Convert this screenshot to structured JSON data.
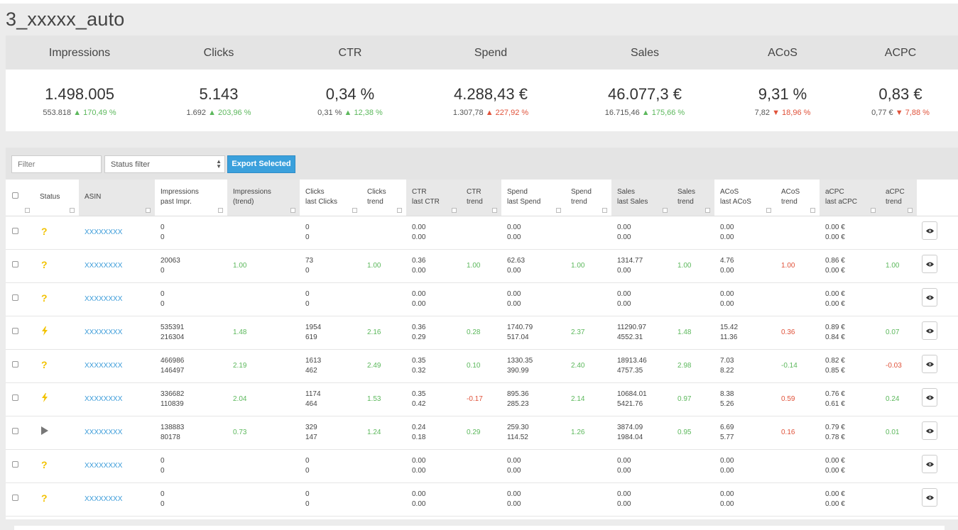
{
  "page": {
    "title": "3_xxxxx_auto"
  },
  "stats": [
    {
      "label": "Impressions",
      "value": "1.498.005",
      "prev": "553.818",
      "arrow": "▲",
      "change": "170,49 %",
      "tone": "up-good"
    },
    {
      "label": "Clicks",
      "value": "5.143",
      "prev": "1.692",
      "arrow": "▲",
      "change": "203,96 %",
      "tone": "up-good"
    },
    {
      "label": "CTR",
      "value": "0,34 %",
      "prev": "0,31 %",
      "arrow": "▲",
      "change": "12,38 %",
      "tone": "up-good"
    },
    {
      "label": "Spend",
      "value": "4.288,43 €",
      "prev": "1.307,78",
      "arrow": "▲",
      "change": "227,92 %",
      "tone": "up-bad"
    },
    {
      "label": "Sales",
      "value": "46.077,3 €",
      "prev": "16.715,46",
      "arrow": "▲",
      "change": "175,66 %",
      "tone": "up-good"
    },
    {
      "label": "ACoS",
      "value": "9,31 %",
      "prev": "7,82",
      "arrow": "▼",
      "change": "18,96 %",
      "tone": "down-bad"
    },
    {
      "label": "ACPC",
      "value": "0,83 €",
      "prev": "0,77 €",
      "arrow": "▼",
      "change": "7,88 %",
      "tone": "down-bad"
    }
  ],
  "toolbar": {
    "filter_placeholder": "Filter",
    "status_filter": "Status filter",
    "export_label": "Export Selected"
  },
  "columns": [
    {
      "l1": "",
      "l2": ""
    },
    {
      "l1": "Status",
      "l2": ""
    },
    {
      "l1": "ASIN",
      "l2": ""
    },
    {
      "l1": "Impressions",
      "l2": "past Impr."
    },
    {
      "l1": "Impressions",
      "l2": "(trend)"
    },
    {
      "l1": "Clicks",
      "l2": "last Clicks"
    },
    {
      "l1": "Clicks",
      "l2": "trend"
    },
    {
      "l1": "CTR",
      "l2": "last CTR"
    },
    {
      "l1": "CTR",
      "l2": "trend"
    },
    {
      "l1": "Spend",
      "l2": "last Spend"
    },
    {
      "l1": "Spend",
      "l2": "trend"
    },
    {
      "l1": "Sales",
      "l2": "last Sales"
    },
    {
      "l1": "Sales",
      "l2": "trend"
    },
    {
      "l1": "ACoS",
      "l2": "last ACoS"
    },
    {
      "l1": "ACoS",
      "l2": "trend"
    },
    {
      "l1": "aCPC",
      "l2": "last aCPC"
    },
    {
      "l1": "aCPC",
      "l2": "trend"
    }
  ],
  "rows": [
    {
      "status": "question",
      "asin": "XXXXXXXX",
      "impr": [
        "0",
        "0"
      ],
      "impr_t": "",
      "clicks": [
        "0",
        "0"
      ],
      "clicks_t": "",
      "ctr": [
        "0.00",
        "0.00"
      ],
      "ctr_t": "",
      "spend": [
        "0.00",
        "0.00"
      ],
      "spend_t": "",
      "sales": [
        "0.00",
        "0.00"
      ],
      "sales_t": "",
      "acos": [
        "0.00",
        "0.00"
      ],
      "acos_t": "",
      "acpc": [
        "0.00 €",
        "0.00 €"
      ],
      "acpc_t": ""
    },
    {
      "status": "question",
      "asin": "XXXXXXXX",
      "impr": [
        "20063",
        "0"
      ],
      "impr_t": "1.00",
      "clicks": [
        "73",
        "0"
      ],
      "clicks_t": "1.00",
      "ctr": [
        "0.36",
        "0.00"
      ],
      "ctr_t": "1.00",
      "spend": [
        "62.63",
        "0.00"
      ],
      "spend_t": "1.00",
      "sales": [
        "1314.77",
        "0.00"
      ],
      "sales_t": "1.00",
      "acos": [
        "4.76",
        "0.00"
      ],
      "acos_t": "1.00",
      "acpc": [
        "0.86 €",
        "0.00 €"
      ],
      "acpc_t": "1.00"
    },
    {
      "status": "question",
      "asin": "XXXXXXXX",
      "impr": [
        "0",
        "0"
      ],
      "impr_t": "",
      "clicks": [
        "0",
        "0"
      ],
      "clicks_t": "",
      "ctr": [
        "0.00",
        "0.00"
      ],
      "ctr_t": "",
      "spend": [
        "0.00",
        "0.00"
      ],
      "spend_t": "",
      "sales": [
        "0.00",
        "0.00"
      ],
      "sales_t": "",
      "acos": [
        "0.00",
        "0.00"
      ],
      "acos_t": "",
      "acpc": [
        "0.00 €",
        "0.00 €"
      ],
      "acpc_t": ""
    },
    {
      "status": "bolt",
      "asin": "XXXXXXXX",
      "impr": [
        "535391",
        "216304"
      ],
      "impr_t": "1.48",
      "clicks": [
        "1954",
        "619"
      ],
      "clicks_t": "2.16",
      "ctr": [
        "0.36",
        "0.29"
      ],
      "ctr_t": "0.28",
      "spend": [
        "1740.79",
        "517.04"
      ],
      "spend_t": "2.37",
      "sales": [
        "11290.97",
        "4552.31"
      ],
      "sales_t": "1.48",
      "acos": [
        "15.42",
        "11.36"
      ],
      "acos_t": "0.36",
      "acpc": [
        "0.89 €",
        "0.84 €"
      ],
      "acpc_t": "0.07"
    },
    {
      "status": "question",
      "asin": "XXXXXXXX",
      "impr": [
        "466986",
        "146497"
      ],
      "impr_t": "2.19",
      "clicks": [
        "1613",
        "462"
      ],
      "clicks_t": "2.49",
      "ctr": [
        "0.35",
        "0.32"
      ],
      "ctr_t": "0.10",
      "spend": [
        "1330.35",
        "390.99"
      ],
      "spend_t": "2.40",
      "sales": [
        "18913.46",
        "4757.35"
      ],
      "sales_t": "2.98",
      "acos": [
        "7.03",
        "8.22"
      ],
      "acos_t": "-0.14",
      "acpc": [
        "0.82 €",
        "0.85 €"
      ],
      "acpc_t": "-0.03"
    },
    {
      "status": "bolt",
      "asin": "XXXXXXXX",
      "impr": [
        "336682",
        "110839"
      ],
      "impr_t": "2.04",
      "clicks": [
        "1174",
        "464"
      ],
      "clicks_t": "1.53",
      "ctr": [
        "0.35",
        "0.42"
      ],
      "ctr_t": "-0.17",
      "spend": [
        "895.36",
        "285.23"
      ],
      "spend_t": "2.14",
      "sales": [
        "10684.01",
        "5421.76"
      ],
      "sales_t": "0.97",
      "acos": [
        "8.38",
        "5.26"
      ],
      "acos_t": "0.59",
      "acpc": [
        "0.76 €",
        "0.61 €"
      ],
      "acpc_t": "0.24"
    },
    {
      "status": "play",
      "asin": "XXXXXXXX",
      "impr": [
        "138883",
        "80178"
      ],
      "impr_t": "0.73",
      "clicks": [
        "329",
        "147"
      ],
      "clicks_t": "1.24",
      "ctr": [
        "0.24",
        "0.18"
      ],
      "ctr_t": "0.29",
      "spend": [
        "259.30",
        "114.52"
      ],
      "spend_t": "1.26",
      "sales": [
        "3874.09",
        "1984.04"
      ],
      "sales_t": "0.95",
      "acos": [
        "6.69",
        "5.77"
      ],
      "acos_t": "0.16",
      "acpc": [
        "0.79 €",
        "0.78 €"
      ],
      "acpc_t": "0.01"
    },
    {
      "status": "question",
      "asin": "XXXXXXXX",
      "impr": [
        "0",
        "0"
      ],
      "impr_t": "",
      "clicks": [
        "0",
        "0"
      ],
      "clicks_t": "",
      "ctr": [
        "0.00",
        "0.00"
      ],
      "ctr_t": "",
      "spend": [
        "0.00",
        "0.00"
      ],
      "spend_t": "",
      "sales": [
        "0.00",
        "0.00"
      ],
      "sales_t": "",
      "acos": [
        "0.00",
        "0.00"
      ],
      "acos_t": "",
      "acpc": [
        "0.00 €",
        "0.00 €"
      ],
      "acpc_t": ""
    },
    {
      "status": "question",
      "asin": "XXXXXXXX",
      "impr": [
        "0",
        "0"
      ],
      "impr_t": "",
      "clicks": [
        "0",
        "0"
      ],
      "clicks_t": "",
      "ctr": [
        "0.00",
        "0.00"
      ],
      "ctr_t": "",
      "spend": [
        "0.00",
        "0.00"
      ],
      "spend_t": "",
      "sales": [
        "0.00",
        "0.00"
      ],
      "sales_t": "",
      "acos": [
        "0.00",
        "0.00"
      ],
      "acos_t": "",
      "acpc": [
        "0.00 €",
        "0.00 €"
      ],
      "acpc_t": ""
    }
  ],
  "colors": {
    "accent": "#3aa0dc",
    "good": "#5cb85c",
    "bad": "#e0523a",
    "warn_icon": "#f2c200"
  },
  "icons": {
    "question": "question-icon",
    "bolt": "bolt-icon",
    "play": "play-icon",
    "eye": "eye-icon"
  }
}
